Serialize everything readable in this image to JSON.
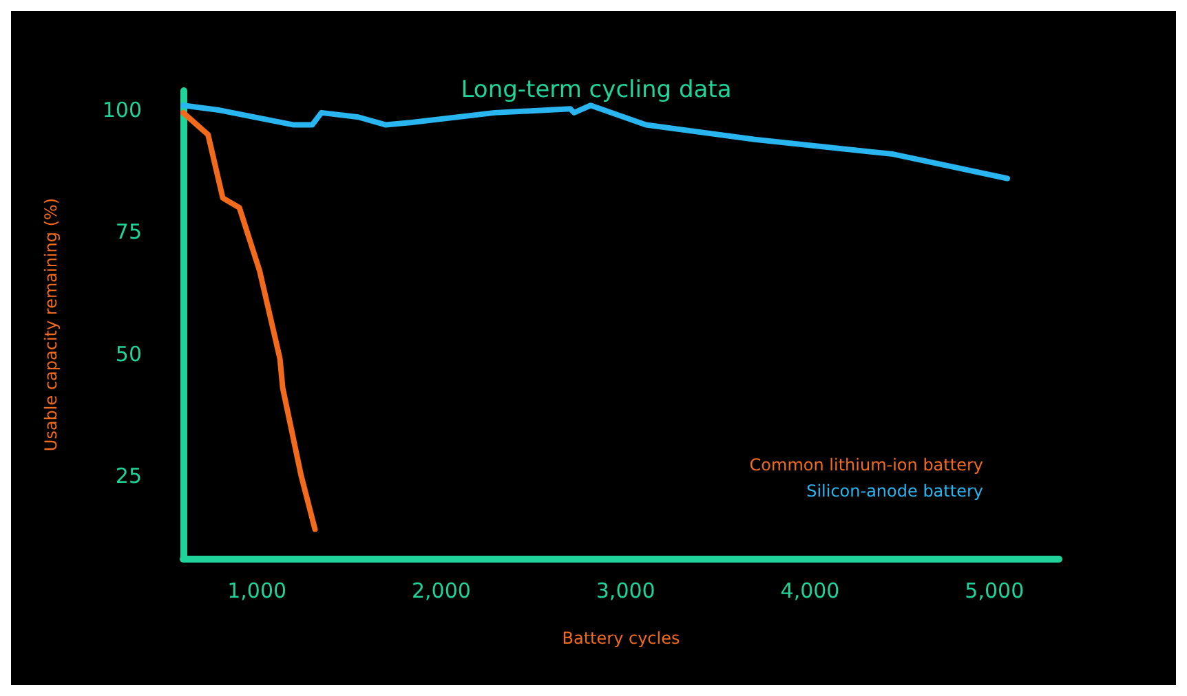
{
  "chart_data": {
    "type": "line",
    "title": "Long-term cycling data",
    "xlabel": "Battery cycles",
    "ylabel": "Usable capacity remaining (%)",
    "xlim": [
      600,
      5350
    ],
    "xticks": [
      {
        "value": 1000,
        "label": "1,000"
      },
      {
        "value": 2000,
        "label": "2,000"
      },
      {
        "value": 3000,
        "label": "3,000"
      },
      {
        "value": 4000,
        "label": "4,000"
      },
      {
        "value": 5000,
        "label": "5,000"
      }
    ],
    "ylim": [
      8,
      104
    ],
    "yticks": [
      25,
      50,
      75,
      100
    ],
    "grid": false,
    "legend": "bottom right",
    "marker": "none",
    "line_style": "solid",
    "series": [
      {
        "name": "Common lithium-ion battery",
        "color": "#f26b1d",
        "x": [
          600,
          735,
          815,
          905,
          1015,
          1125,
          1140,
          1240,
          1315
        ],
        "values": [
          99.5,
          95,
          82,
          80,
          67,
          49,
          43,
          25,
          14
        ]
      },
      {
        "name": "Silicon-anode battery",
        "color": "#29b6f0",
        "x": [
          600,
          800,
          1200,
          1300,
          1350,
          1550,
          1700,
          1840,
          2290,
          2700,
          2720,
          2810,
          3110,
          3700,
          4450,
          5070
        ],
        "values": [
          101,
          100,
          97,
          97,
          99.5,
          98.6,
          97,
          97.5,
          99.5,
          100.3,
          99.5,
          101,
          97,
          94,
          91,
          86
        ]
      }
    ]
  }
}
